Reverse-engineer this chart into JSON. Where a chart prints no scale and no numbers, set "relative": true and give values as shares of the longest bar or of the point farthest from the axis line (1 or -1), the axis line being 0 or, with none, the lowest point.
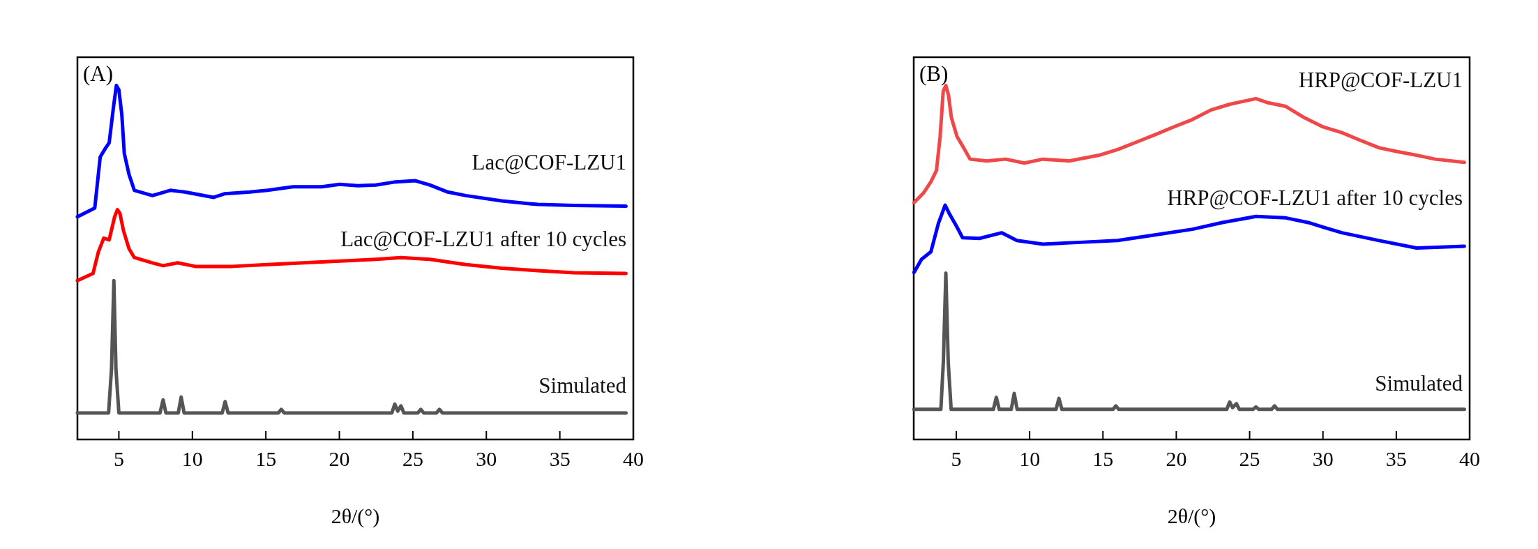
{
  "chart_data": [
    {
      "type": "line",
      "title": "(A)",
      "xlabel": "2θ/(°)",
      "relative": true,
      "xlim": [
        2.18,
        40
      ],
      "xticks": [
        5,
        10,
        15,
        20,
        25,
        30,
        35,
        40
      ],
      "line_style": "solid",
      "series": [
        {
          "name": "Lac@COF-LZU1",
          "color": "#0000ff",
          "x": [
            2.18,
            3.36,
            3.73,
            4.09,
            4.34,
            4.63,
            4.83,
            5,
            5.2,
            5.37,
            5.69,
            6.05,
            7.28,
            8.5,
            9.49,
            11.45,
            12.18,
            13.9,
            15.12,
            16.84,
            18.8,
            20.02,
            21.25,
            22.48,
            23.7,
            25.17,
            26.15,
            27.38,
            28.6,
            31.05,
            33.5,
            35.96,
            39.5
          ],
          "values": [
            0.629,
            0.654,
            0.798,
            0.823,
            0.838,
            0.938,
            1.0,
            0.988,
            0.918,
            0.808,
            0.749,
            0.704,
            0.689,
            0.704,
            0.699,
            0.684,
            0.694,
            0.699,
            0.704,
            0.714,
            0.714,
            0.721,
            0.717,
            0.719,
            0.727,
            0.731,
            0.719,
            0.699,
            0.689,
            0.674,
            0.664,
            0.661,
            0.659
          ]
        },
        {
          "name": "Lac@COF-LZU1 after 10 cycles",
          "color": "#ff0000",
          "x": [
            2.18,
            3.24,
            3.6,
            3.97,
            4.34,
            4.71,
            4.9,
            5.07,
            5.32,
            5.69,
            6.05,
            7.28,
            8.01,
            9.0,
            10.2,
            12.7,
            15.12,
            17.57,
            20.02,
            22.48,
            24.19,
            26.15,
            28.6,
            31.05,
            33.5,
            35.96,
            39.5
          ],
          "values": [
            0.449,
            0.469,
            0.529,
            0.569,
            0.564,
            0.629,
            0.649,
            0.639,
            0.589,
            0.539,
            0.514,
            0.499,
            0.491,
            0.499,
            0.489,
            0.489,
            0.494,
            0.499,
            0.504,
            0.509,
            0.514,
            0.509,
            0.494,
            0.484,
            0.477,
            0.471,
            0.469
          ]
        },
        {
          "name": "Simulated",
          "color": "#555555",
          "x": [
            2.18,
            4.3,
            4.5,
            4.66,
            4.8,
            5.0,
            7.8,
            8.01,
            8.2,
            9.04,
            9.24,
            9.44,
            12.03,
            12.23,
            12.43,
            15.85,
            16.05,
            16.25,
            23.57,
            23.77,
            23.97,
            24.19,
            24.39,
            25.34,
            25.54,
            25.74,
            26.61,
            26.81,
            27.01,
            39.5
          ],
          "values": [
            0.075,
            0.075,
            0.2,
            0.449,
            0.2,
            0.075,
            0.075,
            0.112,
            0.075,
            0.075,
            0.12,
            0.075,
            0.075,
            0.107,
            0.075,
            0.075,
            0.085,
            0.075,
            0.075,
            0.1,
            0.08,
            0.095,
            0.075,
            0.075,
            0.085,
            0.075,
            0.075,
            0.085,
            0.075,
            0.075
          ]
        }
      ]
    },
    {
      "type": "line",
      "title": "(B)",
      "xlabel": "2θ/(°)",
      "relative": true,
      "xlim": [
        2.1,
        40
      ],
      "xticks": [
        5,
        10,
        15,
        20,
        25,
        30,
        35,
        40
      ],
      "line_style": "solid",
      "series": [
        {
          "name": "HRP@COF-LZU1",
          "color": "#f04848",
          "x": [
            2.12,
            2.76,
            3.27,
            3.65,
            3.9,
            4.11,
            4.29,
            4.47,
            4.67,
            5.05,
            5.43,
            5.94,
            7.09,
            8.36,
            9.64,
            10.91,
            12.69,
            14.73,
            16.0,
            17.28,
            18.55,
            19.82,
            21.1,
            22.37,
            23.64,
            25.43,
            26.19,
            27.47,
            28.74,
            30.01,
            31.29,
            32.56,
            33.83,
            35.11,
            36.38,
            37.65,
            39.64
          ],
          "values": [
            0.669,
            0.696,
            0.728,
            0.76,
            0.856,
            0.984,
            1.0,
            0.973,
            0.909,
            0.856,
            0.829,
            0.792,
            0.787,
            0.792,
            0.781,
            0.792,
            0.787,
            0.803,
            0.819,
            0.84,
            0.861,
            0.883,
            0.904,
            0.931,
            0.947,
            0.963,
            0.952,
            0.941,
            0.909,
            0.883,
            0.867,
            0.845,
            0.824,
            0.813,
            0.803,
            0.792,
            0.783
          ]
        },
        {
          "name": "HRP@COF-LZU1 after 10 cycles",
          "color": "#0000ff",
          "x": [
            2.12,
            2.63,
            3.27,
            3.78,
            4.24,
            4.54,
            5.05,
            5.43,
            6.58,
            8.11,
            9.13,
            10.91,
            13.46,
            16.0,
            18.55,
            21.1,
            23.14,
            25.43,
            27.47,
            28.99,
            30.01,
            31.29,
            33.83,
            36.38,
            39.64
          ],
          "values": [
            0.472,
            0.509,
            0.53,
            0.61,
            0.662,
            0.637,
            0.6,
            0.57,
            0.568,
            0.584,
            0.562,
            0.552,
            0.557,
            0.562,
            0.578,
            0.594,
            0.613,
            0.63,
            0.626,
            0.613,
            0.6,
            0.584,
            0.562,
            0.541,
            0.546
          ]
        },
        {
          "name": "Simulated",
          "color": "#555555",
          "x": [
            2.12,
            3.95,
            4.12,
            4.29,
            4.45,
            4.65,
            7.53,
            7.73,
            7.93,
            8.75,
            8.95,
            9.15,
            11.8,
            12.0,
            12.2,
            15.68,
            15.88,
            16.08,
            23.44,
            23.64,
            23.84,
            24.1,
            24.3,
            25.23,
            25.43,
            25.63,
            26.5,
            26.7,
            26.9,
            39.64
          ],
          "values": [
            0.085,
            0.085,
            0.22,
            0.47,
            0.22,
            0.085,
            0.085,
            0.119,
            0.085,
            0.085,
            0.13,
            0.085,
            0.085,
            0.116,
            0.085,
            0.085,
            0.095,
            0.085,
            0.085,
            0.106,
            0.09,
            0.101,
            0.085,
            0.085,
            0.092,
            0.085,
            0.085,
            0.095,
            0.085,
            0.085
          ]
        }
      ]
    }
  ]
}
